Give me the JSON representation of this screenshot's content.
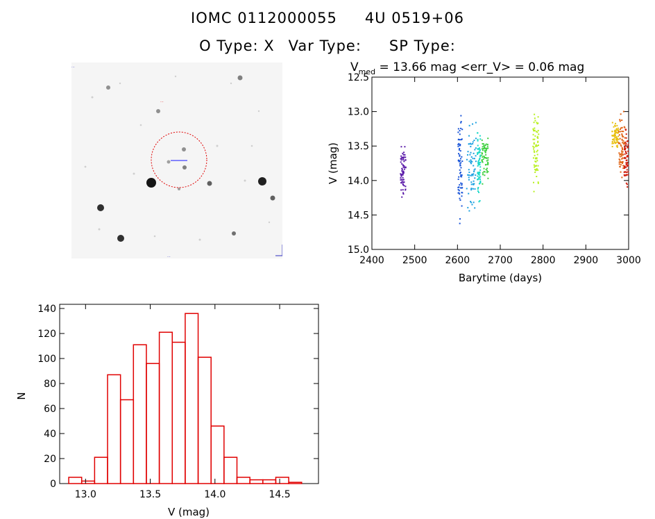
{
  "header": {
    "iomc_id": "IOMC 0112000055",
    "object_name": "4U 0519+06",
    "o_type": "O Type: X",
    "var_type": "Var Type:",
    "sp_type": "SP Type:"
  },
  "image_panel": {
    "top_left_label": "...",
    "center_label": "...",
    "bottom_label": "...",
    "circle_color": "#e00000"
  },
  "chart_data": [
    {
      "type": "scatter",
      "title_prefix": "V",
      "title_subscript": "med",
      "title_text": " = 13.66 mag <err_V> = 0.06 mag",
      "xlabel": "Barytime (days)",
      "ylabel": "V (mag)",
      "xlim": [
        2400,
        3000
      ],
      "ylim": [
        15.0,
        12.5
      ],
      "y_inverted": true,
      "xticks": [
        2400,
        2500,
        2600,
        2700,
        2800,
        2900,
        3000
      ],
      "yticks": [
        "12.5",
        "13.0",
        "13.5",
        "14.0",
        "14.5",
        "15.0"
      ],
      "series": [
        {
          "color": "#5a1aa8",
          "x": [
            2465,
            2478
          ],
          "y_range": [
            13.5,
            14.25
          ]
        },
        {
          "color": "#1a55d8",
          "x": [
            2600,
            2610
          ],
          "y_range": [
            13.05,
            14.65
          ]
        },
        {
          "color": "#1aa0e0",
          "x": [
            2620,
            2642
          ],
          "y_range": [
            13.15,
            14.5
          ]
        },
        {
          "color": "#1ad8c8",
          "x": [
            2645,
            2652
          ],
          "y_range": [
            13.3,
            14.3
          ]
        },
        {
          "color": "#40d040",
          "x": [
            2655,
            2670
          ],
          "y_range": [
            13.35,
            14.05
          ]
        },
        {
          "color": "#b8f020",
          "x": [
            2775,
            2788
          ],
          "y_range": [
            12.95,
            14.15
          ]
        },
        {
          "color": "#e8c010",
          "x": [
            2960,
            2975
          ],
          "y_range": [
            13.15,
            13.55
          ]
        },
        {
          "color": "#e06010",
          "x": [
            2975,
            2990
          ],
          "y_range": [
            12.9,
            14.05
          ]
        },
        {
          "color": "#d02010",
          "x": [
            2988,
            2998
          ],
          "y_range": [
            13.25,
            14.1
          ]
        }
      ]
    },
    {
      "type": "bar",
      "xlabel": "V (mag)",
      "ylabel": "N",
      "xlim": [
        12.8,
        14.8
      ],
      "ylim": [
        0,
        140
      ],
      "xticks": [
        "13.0",
        "13.5",
        "14.0",
        "14.5"
      ],
      "yticks": [
        "0",
        "20",
        "40",
        "60",
        "80",
        "100",
        "120",
        "140"
      ],
      "bar_color": "#e00000",
      "bin_width": 0.1,
      "bin_starts": [
        12.87,
        12.97,
        13.07,
        13.17,
        13.27,
        13.37,
        13.47,
        13.57,
        13.67,
        13.77,
        13.87,
        13.97,
        14.07,
        14.17,
        14.27,
        14.37,
        14.47,
        14.57
      ],
      "values": [
        5,
        2,
        21,
        87,
        67,
        111,
        96,
        121,
        113,
        136,
        101,
        46,
        21,
        5,
        3,
        3,
        5,
        1
      ]
    }
  ]
}
